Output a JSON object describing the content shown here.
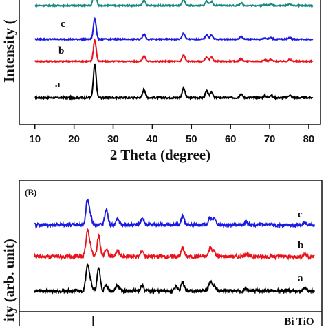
{
  "chart_data": [
    {
      "type": "line",
      "panel_label": "",
      "xlabel": "2 Theta (degree)",
      "ylabel": "Intensity (",
      "xlim": [
        6,
        83
      ],
      "xticks": [
        10,
        20,
        30,
        40,
        50,
        60,
        70,
        80
      ],
      "grid": false,
      "legend": "none",
      "series": [
        {
          "name": "a",
          "color": "#000000",
          "peaks": [
            [
              25.3,
              1.0
            ],
            [
              37.9,
              0.25
            ],
            [
              48.0,
              0.3
            ],
            [
              53.9,
              0.2
            ],
            [
              55.1,
              0.18
            ],
            [
              62.7,
              0.12
            ],
            [
              68.8,
              0.06
            ],
            [
              70.3,
              0.07
            ],
            [
              75.1,
              0.08
            ]
          ]
        },
        {
          "name": "b",
          "color": "#e8141c",
          "peaks": [
            [
              25.3,
              0.95
            ],
            [
              37.9,
              0.24
            ],
            [
              48.0,
              0.28
            ],
            [
              53.9,
              0.19
            ],
            [
              55.1,
              0.17
            ],
            [
              62.7,
              0.12
            ],
            [
              68.8,
              0.06
            ],
            [
              70.3,
              0.07
            ],
            [
              75.1,
              0.08
            ]
          ]
        },
        {
          "name": "c",
          "color": "#1a1ae0",
          "peaks": [
            [
              25.3,
              0.95
            ],
            [
              37.9,
              0.24
            ],
            [
              48.0,
              0.27
            ],
            [
              53.9,
              0.2
            ],
            [
              55.1,
              0.18
            ],
            [
              62.7,
              0.12
            ],
            [
              68.8,
              0.06
            ],
            [
              70.3,
              0.07
            ],
            [
              75.1,
              0.08
            ]
          ]
        },
        {
          "name": "",
          "color": "#1a8a80",
          "peaks": [
            [
              25.3,
              0.95
            ],
            [
              37.9,
              0.24
            ],
            [
              48.0,
              0.27
            ],
            [
              53.9,
              0.2
            ],
            [
              55.1,
              0.18
            ],
            [
              62.7,
              0.12
            ],
            [
              68.8,
              0.06
            ],
            [
              70.3,
              0.07
            ],
            [
              75.1,
              0.08
            ]
          ]
        }
      ]
    },
    {
      "type": "line",
      "panel_label": "(B)",
      "xlabel": "",
      "ylabel": "ity (arb. unit)",
      "xlim": [
        5,
        85
      ],
      "grid": false,
      "legend": "none",
      "reference_label": "Bi TiO",
      "reference_line_x": 23.0,
      "series": [
        {
          "name": "a",
          "color": "#000000",
          "peaks": [
            [
              23.0,
              0.9
            ],
            [
              23.8,
              0.35
            ],
            [
              26.0,
              0.8
            ],
            [
              28.0,
              0.2
            ],
            [
              31.0,
              0.22
            ],
            [
              37.5,
              0.2
            ],
            [
              46.5,
              0.15
            ],
            [
              48.2,
              0.28
            ],
            [
              55.5,
              0.3
            ],
            [
              56.5,
              0.18
            ],
            [
              65.0,
              0.08
            ],
            [
              80.5,
              0.08
            ]
          ]
        },
        {
          "name": "b",
          "color": "#e8141c",
          "peaks": [
            [
              23.0,
              0.85
            ],
            [
              23.8,
              0.35
            ],
            [
              26.0,
              0.7
            ],
            [
              28.0,
              0.25
            ],
            [
              31.0,
              0.2
            ],
            [
              37.5,
              0.2
            ],
            [
              48.2,
              0.3
            ],
            [
              55.5,
              0.32
            ],
            [
              56.5,
              0.2
            ],
            [
              65.0,
              0.1
            ],
            [
              80.5,
              0.08
            ]
          ]
        },
        {
          "name": "c",
          "color": "#1a1ae0",
          "peaks": [
            [
              23.0,
              0.85
            ],
            [
              23.8,
              0.3
            ],
            [
              28.0,
              0.55
            ],
            [
              31.0,
              0.2
            ],
            [
              37.5,
              0.22
            ],
            [
              48.2,
              0.3
            ],
            [
              55.5,
              0.25
            ],
            [
              56.5,
              0.2
            ],
            [
              65.0,
              0.12
            ],
            [
              80.5,
              0.08
            ]
          ]
        }
      ]
    }
  ]
}
